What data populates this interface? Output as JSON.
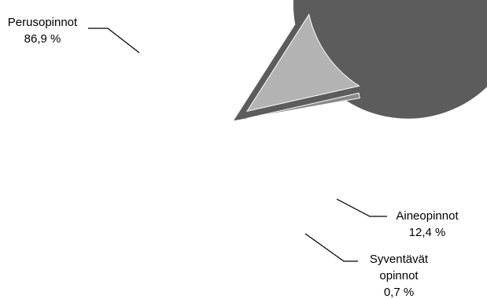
{
  "chart_data": {
    "type": "pie",
    "slices": [
      {
        "name": "Perusopinnot",
        "value": 86.9,
        "value_label": "86,9 %",
        "color": "#5c5c5c",
        "exploded": false
      },
      {
        "name": "Aineopinnot",
        "value": 12.4,
        "value_label": "12,4 %",
        "color": "#b3b3b3",
        "exploded": true
      },
      {
        "name_lines": [
          "Syventävät",
          "opinnot"
        ],
        "value": 0.7,
        "value_label": "0,7 %",
        "color": "#8a8a8a",
        "exploded": true
      }
    ],
    "legend": "none"
  }
}
